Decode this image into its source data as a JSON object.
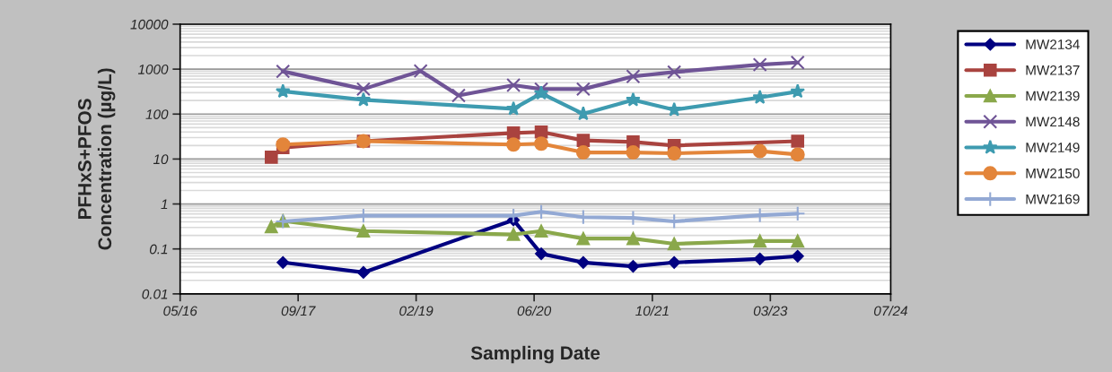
{
  "chart_data": {
    "type": "line",
    "xlabel": "Sampling Date",
    "ylabel": "PFHxS+PFOS\nConcentration (µg/L)",
    "log": "y",
    "grid": "y",
    "legend": "right",
    "line_style": "solid",
    "xlim": [
      "2016-05-15",
      "2024-07-25"
    ],
    "xticks": [
      {
        "value": "2016-05-15",
        "label": "05/16"
      },
      {
        "value": "2017-09-24",
        "label": "09/17"
      },
      {
        "value": "2019-02-03",
        "label": "02/19"
      },
      {
        "value": "2020-06-14",
        "label": "06/20"
      },
      {
        "value": "2021-10-25",
        "label": "10/21"
      },
      {
        "value": "2023-03-06",
        "label": "03/23"
      },
      {
        "value": "2024-07-25",
        "label": "07/24"
      }
    ],
    "ylim": [
      0.01,
      10000
    ],
    "yticks": [
      0.01,
      0.1,
      1,
      10,
      100,
      1000,
      10000
    ],
    "series": [
      {
        "name": "MW2134",
        "color": "#000080",
        "marker": "diamond",
        "x": [
          "2017-07-22",
          "2018-06-26",
          "2020-03-19",
          "2020-07-14",
          "2021-01-07",
          "2021-08-05",
          "2022-01-25",
          "2023-01-21",
          "2023-06-29"
        ],
        "values": [
          0.05,
          0.03,
          0.44,
          0.078,
          0.05,
          0.041,
          0.05,
          0.06,
          0.069
        ]
      },
      {
        "name": "MW2137",
        "color": "#a9433f",
        "marker": "square",
        "x": [
          "2017-06-03",
          "2017-07-22",
          "2018-06-26",
          "2020-03-19",
          "2020-07-14",
          "2021-01-07",
          "2021-08-05",
          "2022-01-25",
          "2023-06-29"
        ],
        "values": [
          11,
          18,
          25,
          38,
          40,
          26,
          24,
          20,
          25
        ]
      },
      {
        "name": "MW2139",
        "color": "#8aa84b",
        "marker": "triangle",
        "x": [
          "2017-06-03",
          "2017-07-22",
          "2018-06-26",
          "2020-03-19",
          "2020-07-14",
          "2021-01-07",
          "2021-08-05",
          "2022-01-25",
          "2023-01-21",
          "2023-06-29"
        ],
        "values": [
          0.31,
          0.42,
          0.25,
          0.21,
          0.25,
          0.17,
          0.17,
          0.13,
          0.15,
          0.15
        ]
      },
      {
        "name": "MW2148",
        "color": "#6f5496",
        "marker": "cross",
        "x": [
          "2017-07-22",
          "2018-06-26",
          "2019-02-22",
          "2019-08-01",
          "2020-03-19",
          "2020-07-14",
          "2021-01-07",
          "2021-08-05",
          "2022-01-25",
          "2023-01-21",
          "2023-06-29"
        ],
        "values": [
          890,
          360,
          910,
          260,
          440,
          360,
          360,
          690,
          860,
          1260,
          1400
        ]
      },
      {
        "name": "MW2149",
        "color": "#3e9bb0",
        "marker": "star",
        "x": [
          "2017-07-22",
          "2018-06-26",
          "2020-03-19",
          "2020-07-14",
          "2021-01-07",
          "2021-08-05",
          "2022-01-25",
          "2023-01-21",
          "2023-06-29"
        ],
        "values": [
          320,
          207,
          131,
          290,
          101,
          207,
          125,
          234,
          318
        ]
      },
      {
        "name": "MW2150",
        "color": "#e3853a",
        "marker": "circle",
        "x": [
          "2017-07-22",
          "2018-06-26",
          "2020-03-19",
          "2020-07-14",
          "2021-01-07",
          "2021-08-05",
          "2022-01-25",
          "2023-01-21",
          "2023-06-29"
        ],
        "values": [
          21,
          25,
          21,
          22,
          14,
          14,
          13.4,
          15,
          12.6
        ]
      },
      {
        "name": "MW2169",
        "color": "#93a9d4",
        "marker": "plus",
        "x": [
          "2017-07-22",
          "2018-06-26",
          "2020-03-19",
          "2020-07-14",
          "2021-01-07",
          "2021-08-05",
          "2022-01-25",
          "2023-01-21",
          "2023-06-29"
        ],
        "values": [
          0.41,
          0.55,
          0.55,
          0.67,
          0.51,
          0.49,
          0.41,
          0.56,
          0.61
        ]
      }
    ]
  }
}
